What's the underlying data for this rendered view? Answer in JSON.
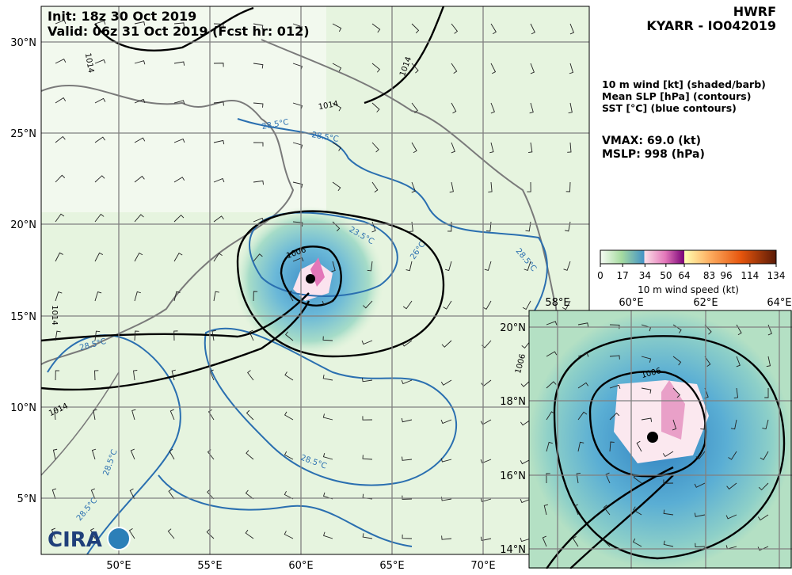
{
  "header": {
    "init": "Init:  18z 30 Oct 2019",
    "valid": "Valid: 06z 31 Oct 2019 (Fcst hr: 012)",
    "model": "HWRF",
    "storm": "KYARR - IO042019"
  },
  "legend": {
    "lines": [
      "10 m wind [kt] (shaded/barb)",
      "Mean SLP [hPa] (contours)",
      "SST [°C] (blue contours)"
    ],
    "vmax": "VMAX:  69.0 (kt)",
    "mslp": "MSLP:  998 (hPa)"
  },
  "colorbar": {
    "label": "10 m wind speed (kt)",
    "ticks": [
      0,
      17,
      34,
      50,
      64,
      83,
      96,
      114,
      134
    ]
  },
  "map": {
    "lon_labels": [
      "50°E",
      "55°E",
      "60°E",
      "65°E",
      "70°E"
    ],
    "lat_labels": [
      "30°N",
      "25°N",
      "20°N",
      "15°N",
      "10°N",
      "5°N"
    ],
    "slp_labels": [
      "1014",
      "1014",
      "1014",
      "1006",
      "1014",
      "1014",
      "1006"
    ],
    "sst_labels": [
      "28.5°C",
      "28.5°C",
      "23.5°C",
      "26°C",
      "28.5°C",
      "28.5°C",
      "28.5°C",
      "28.5°C",
      "28.5°C"
    ],
    "logo": "CIRA"
  },
  "inset": {
    "lon_labels": [
      "58°E",
      "60°E",
      "62°E",
      "64°E"
    ],
    "lat_labels": [
      "20°N",
      "18°N",
      "16°N",
      "14°N"
    ],
    "slp_labels": [
      "1006"
    ]
  }
}
